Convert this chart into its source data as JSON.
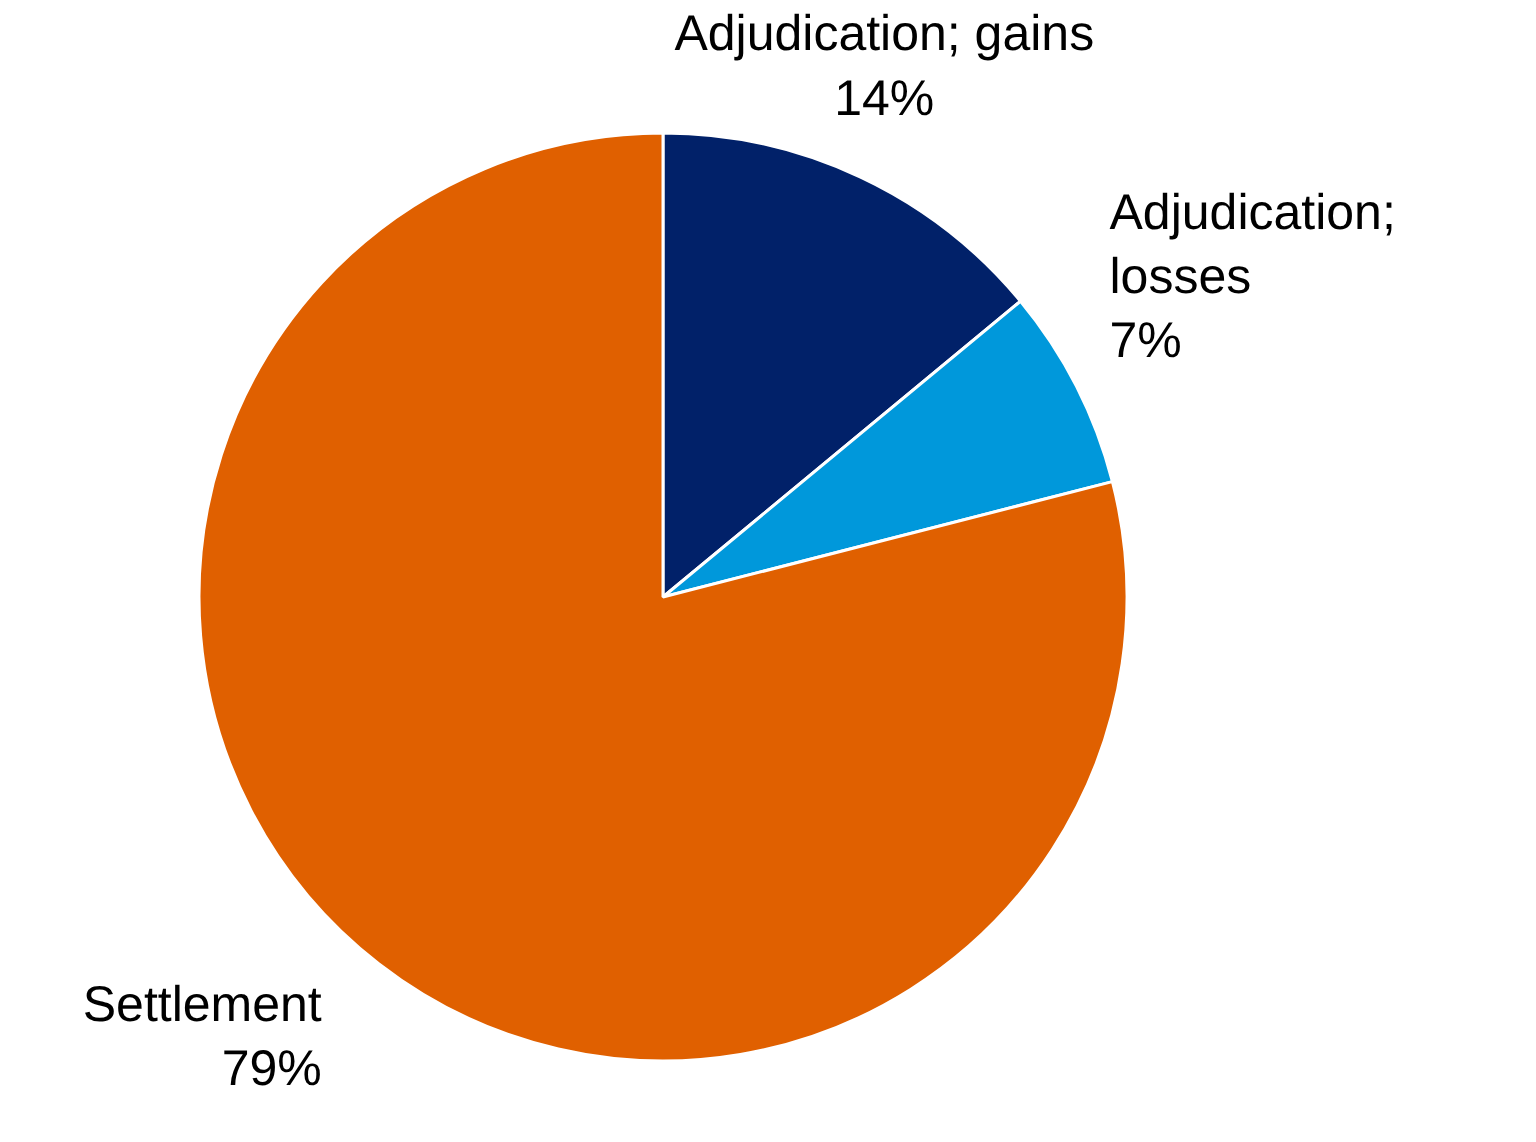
{
  "chart_data": {
    "type": "pie",
    "categories": [
      "Adjudication; gains",
      "Adjudication; losses",
      "Settlement"
    ],
    "values": [
      14,
      7,
      79
    ],
    "colors": [
      "#012169",
      "#0098db",
      "#e06000"
    ],
    "value_labels": [
      "14%",
      "7%",
      "79%"
    ]
  }
}
